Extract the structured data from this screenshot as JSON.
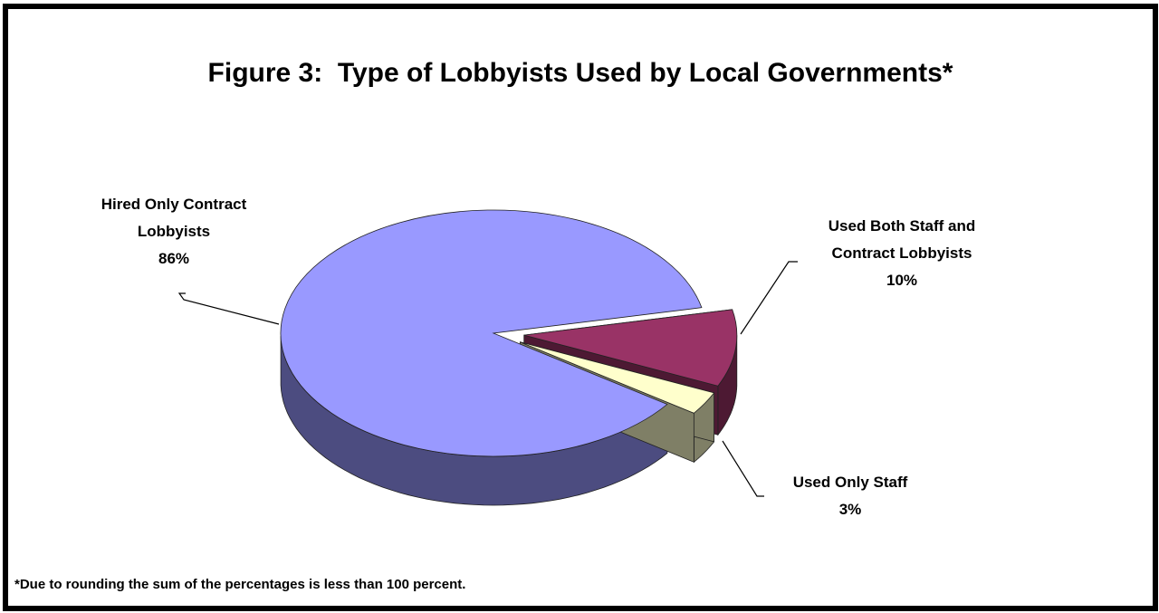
{
  "chart_data": {
    "type": "pie",
    "title": "Figure 3:  Type of Lobbyists Used by Local Governments*",
    "footnote": "*Due to rounding the sum of the percentages is less than 100 percent.",
    "slices": [
      {
        "label_lines": [
          "Hired Only Contract",
          "Lobbyists"
        ],
        "value_label": "86%",
        "value": 86,
        "color": "#9999FF",
        "side_color": "#4C4C80"
      },
      {
        "label_lines": [
          "Used Both Staff and",
          "Contract Lobbyists"
        ],
        "value_label": "10%",
        "value": 10,
        "color": "#993366",
        "side_color": "#4D1933"
      },
      {
        "label_lines": [
          "Used Only Staff"
        ],
        "value_label": "3%",
        "value": 3,
        "color": "#FFFFCC",
        "side_color": "#7F7F66"
      }
    ],
    "legend": "none",
    "style": "3d-exploded-pie"
  }
}
